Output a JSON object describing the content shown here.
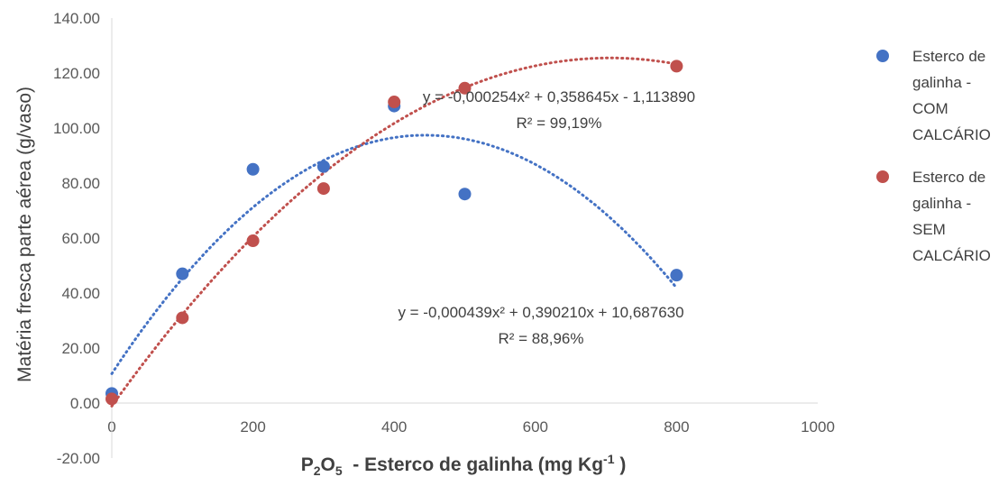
{
  "chart_data": {
    "type": "scatter",
    "title": "",
    "xlabel": {
      "main": "P",
      "sub1": "2",
      "mid": "O",
      "sub2": "5",
      "rest": "  - Esterco de galinha (mg Kg",
      "sup": "-1",
      "end": " )"
    },
    "ylabel": "Matéria fresca parte aérea (g/vaso)",
    "xlim": [
      0,
      1000
    ],
    "ylim": [
      -20,
      140
    ],
    "x_ticks": [
      "0",
      "200",
      "400",
      "600",
      "800",
      "1000"
    ],
    "x_tick_values": [
      0,
      200,
      400,
      600,
      800,
      1000
    ],
    "y_ticks": [
      "-20.00",
      "0.00",
      "20.00",
      "40.00",
      "60.00",
      "80.00",
      "100.00",
      "120.00",
      "140.00"
    ],
    "y_tick_values": [
      -20,
      0,
      20,
      40,
      60,
      80,
      100,
      120,
      140
    ],
    "grid": false,
    "legend_position": "right",
    "series": [
      {
        "name": "Esterco de galinha - COM CALCÁRIO",
        "legend_lines": [
          "Esterco de",
          "galinha -",
          "COM",
          "CALCÁRIO"
        ],
        "color": "#4472C4",
        "x": [
          0,
          100,
          200,
          300,
          400,
          500,
          800
        ],
        "y": [
          3.5,
          47,
          85,
          86,
          108,
          76,
          46.5
        ],
        "trendline": {
          "type": "polynomial",
          "a": -0.000439,
          "b": 0.39021,
          "c": 10.68763,
          "x_range": [
            0,
            800
          ],
          "equation": "y = -0,000439x² + 0,390210x + 10,687630",
          "r2": "R² = 88,96%"
        }
      },
      {
        "name": "Esterco de galinha - SEM CALCÁRIO",
        "legend_lines": [
          "Esterco de",
          "galinha -",
          "SEM",
          "CALCÁRIO"
        ],
        "color": "#C0504D",
        "x": [
          0,
          100,
          200,
          300,
          400,
          500,
          800
        ],
        "y": [
          1.5,
          31,
          59,
          78,
          109.5,
          114.5,
          122.5
        ],
        "trendline": {
          "type": "polynomial",
          "a": -0.000254,
          "b": 0.358645,
          "c": -1.11389,
          "x_range": [
            0,
            800
          ],
          "equation": "y = -0,000254x² + 0,358645x - 1,113890",
          "r2": "R² = 99,19%"
        }
      }
    ]
  }
}
